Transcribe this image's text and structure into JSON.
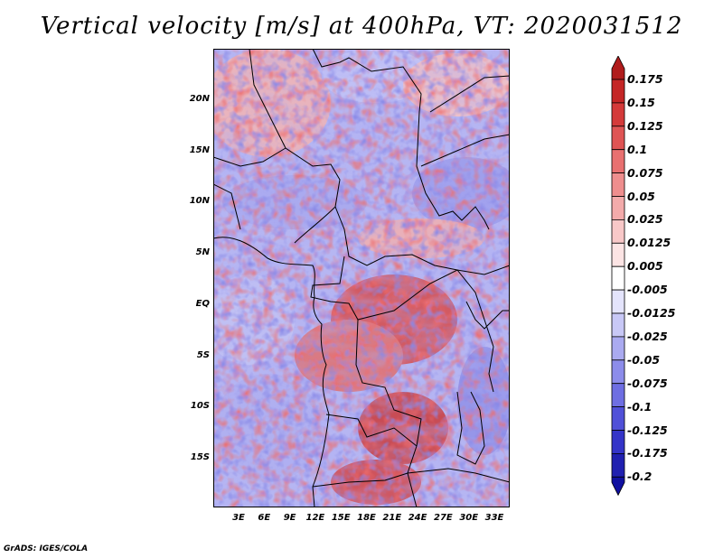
{
  "title": "Vertical velocity [m/s] at 400hPa, VT: 2020031512",
  "map": {
    "lat_labels": [
      "20N",
      "15N",
      "10N",
      "5N",
      "EQ",
      "5S",
      "10S",
      "15S"
    ],
    "lon_labels": [
      "3E",
      "6E",
      "9E",
      "12E",
      "15E",
      "18E",
      "21E",
      "24E",
      "27E",
      "30E",
      "33E"
    ],
    "lon_range_deg_east": [
      0.5,
      35.5
    ],
    "lat_range_deg": [
      -20,
      24.5
    ]
  },
  "colorbar": {
    "labels": [
      "0.175",
      "0.15",
      "0.125",
      "0.1",
      "0.075",
      "0.05",
      "0.025",
      "0.0125",
      "0.005",
      "-0.005",
      "-0.0125",
      "-0.025",
      "-0.05",
      "-0.075",
      "-0.1",
      "-0.125",
      "-0.175",
      "-0.2"
    ],
    "colors": [
      "#b01c1c",
      "#c42626",
      "#d43a3a",
      "#df5454",
      "#e87070",
      "#ee8e8e",
      "#f3abab",
      "#f8c8c8",
      "#fce4e4",
      "#ffffff",
      "#e4e4fc",
      "#c8c8f6",
      "#aaaaf0",
      "#8c8cea",
      "#6e6ee2",
      "#5050d8",
      "#3434c8",
      "#2020b0",
      "#1010a0"
    ]
  },
  "credit": "GrADS: IGES/COLA"
}
